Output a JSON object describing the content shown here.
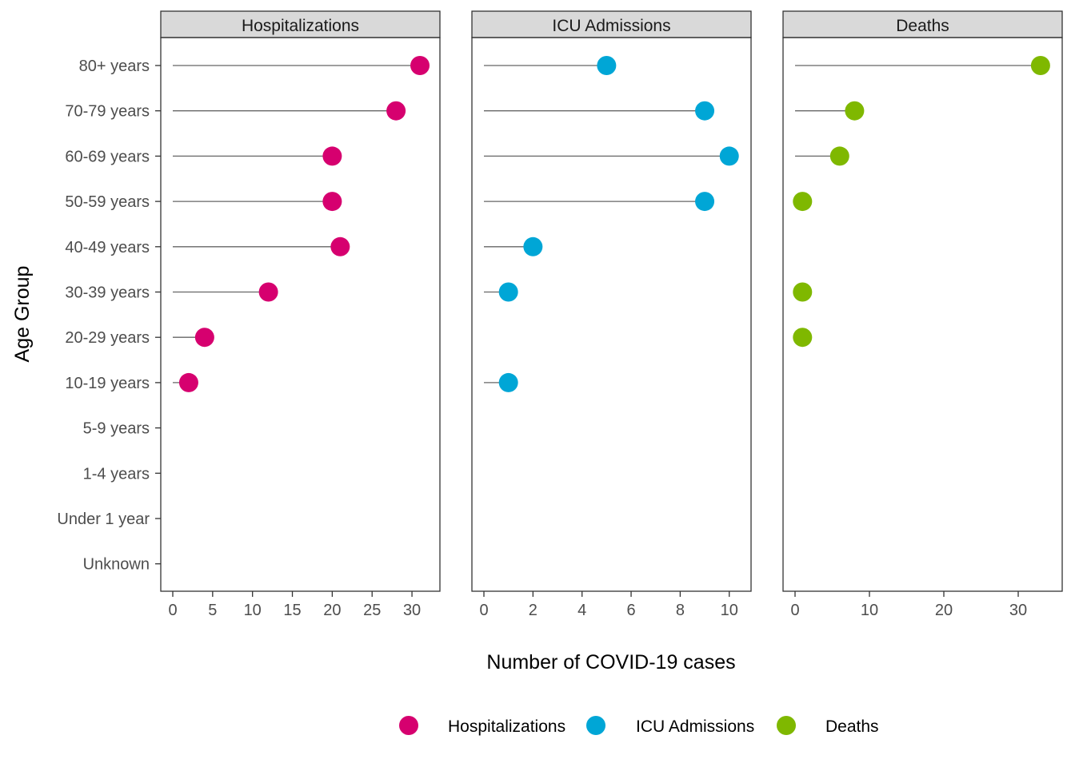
{
  "chart_data": {
    "type": "lollipop",
    "facets": [
      "Hospitalizations",
      "ICU Admissions",
      "Deaths"
    ],
    "categories": [
      "80+ years",
      "70-79 years",
      "60-69 years",
      "50-59 years",
      "40-49 years",
      "30-39 years",
      "20-29 years",
      "10-19 years",
      "5-9 years",
      "1-4 years",
      "Under 1 year",
      "Unknown"
    ],
    "series": [
      {
        "name": "Hospitalizations",
        "color": "#d6006f",
        "xlim": [
          0,
          32
        ],
        "ticks": [
          0,
          5,
          10,
          15,
          20,
          25,
          30
        ],
        "values": [
          31,
          28,
          20,
          20,
          21,
          12,
          4,
          2,
          null,
          null,
          null,
          null
        ]
      },
      {
        "name": "ICU Admissions",
        "color": "#00a6d6",
        "xlim": [
          0,
          10.4
        ],
        "ticks": [
          0,
          2,
          4,
          6,
          8,
          10
        ],
        "values": [
          5,
          9,
          10,
          9,
          2,
          1,
          null,
          1,
          null,
          null,
          null,
          null
        ]
      },
      {
        "name": "Deaths",
        "color": "#7fb800",
        "xlim": [
          0,
          34.3
        ],
        "ticks": [
          0,
          10,
          20,
          30
        ],
        "values": [
          33,
          8,
          6,
          1,
          null,
          1,
          1,
          null,
          null,
          null,
          null,
          null
        ]
      }
    ],
    "xlabel": "Number of COVID-19 cases",
    "ylabel": "Age Group",
    "legend_position": "bottom",
    "grid": false
  }
}
